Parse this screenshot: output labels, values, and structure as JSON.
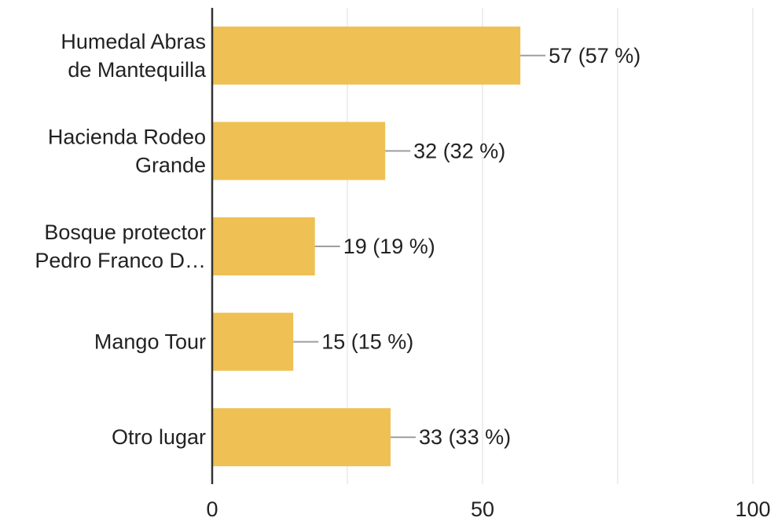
{
  "chart_data": {
    "type": "bar",
    "orientation": "horizontal",
    "categories": [
      [
        "Humedal Abras",
        "de Mantequilla"
      ],
      [
        "Hacienda Rodeo",
        "Grande"
      ],
      [
        "Bosque protector",
        "Pedro Franco D…"
      ],
      [
        "Mango Tour"
      ],
      [
        "Otro lugar"
      ]
    ],
    "values": [
      57,
      32,
      19,
      15,
      33
    ],
    "data_labels": [
      "57 (57 %)",
      "32 (32 %)",
      "19 (19 %)",
      "15 (15 %)",
      "33 (33 %)"
    ],
    "xlim": [
      0,
      100
    ],
    "x_ticks": [
      0,
      50,
      100
    ],
    "x_tick_labels": [
      "0",
      "50",
      "100"
    ],
    "grid": true,
    "legend": "none",
    "bar_color": "#EFC053",
    "gridline_color": "#E8E8E8",
    "axis_color": "#333333",
    "leader_line_color": "#9E9E9E"
  }
}
